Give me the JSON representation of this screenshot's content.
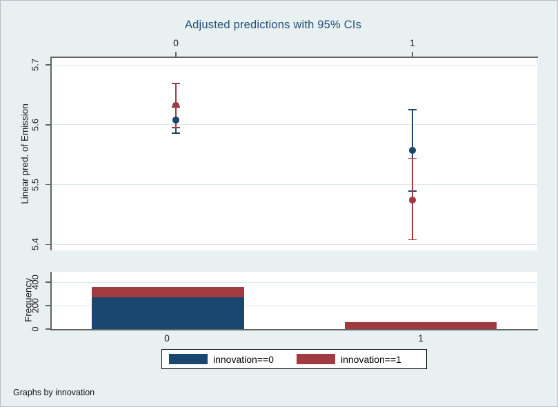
{
  "colors": {
    "background": "#e9f0f2",
    "plot_background": "#ffffff",
    "axis_line": "#636363",
    "gridline": "#dde9ea",
    "title": "#1f4e79",
    "navy": "#1a476f",
    "maroon": "#a23a42"
  },
  "chart_data": {
    "type": "errorbar+bar",
    "title": "Adjusted predictions with 95% CIs",
    "note": "Graphs by innovation",
    "panels": [
      {
        "name": "predictions",
        "type": "errorbar",
        "ylabel": "Linear pred. of Emission",
        "ylim": [
          5.39,
          5.713
        ],
        "yticks": [
          {
            "v": 5.4,
            "label": "5.4"
          },
          {
            "v": 5.5,
            "label": "5.5"
          },
          {
            "v": 5.6,
            "label": "5.6"
          },
          {
            "v": 5.7,
            "label": "5.7"
          }
        ],
        "x_categories": [
          "0",
          "1"
        ],
        "x_axis_position": "top",
        "grid": true,
        "series": [
          {
            "name": "innovation==0",
            "color": "#1a476f",
            "means": [
              5.608,
              5.557
            ],
            "ci_low": [
              5.586,
              5.489
            ],
            "ci_high": [
              5.63,
              5.625
            ]
          },
          {
            "name": "innovation==1",
            "color": "#a23a42",
            "means": [
              5.633,
              5.474
            ],
            "ci_low": [
              5.595,
              5.408
            ],
            "ci_high": [
              5.669,
              5.544
            ]
          }
        ]
      },
      {
        "name": "frequency",
        "type": "stacked-bar",
        "ylabel": "Frequency",
        "ylim": [
          0,
          490
        ],
        "yticks": [
          {
            "v": 0,
            "label": "0"
          },
          {
            "v": 200,
            "label": "200"
          },
          {
            "v": 400,
            "label": "400"
          }
        ],
        "x_categories": [
          "0",
          "1"
        ],
        "x_axis_position": "bottom",
        "grid": true,
        "bars": [
          {
            "category": "0",
            "segments": [
              {
                "series": "innovation==0",
                "color": "#1a476f",
                "value": 272
              },
              {
                "series": "innovation==1",
                "color": "#a23a42",
                "value": 86
              }
            ]
          },
          {
            "category": "1",
            "segments": [
              {
                "series": "innovation==1",
                "color": "#a23a42",
                "value": 60
              }
            ]
          }
        ]
      }
    ],
    "legend": {
      "position": "bottom-center",
      "entries": [
        {
          "label": "innovation==0",
          "color": "#1a476f"
        },
        {
          "label": "innovation==1",
          "color": "#a23a42"
        }
      ]
    }
  }
}
